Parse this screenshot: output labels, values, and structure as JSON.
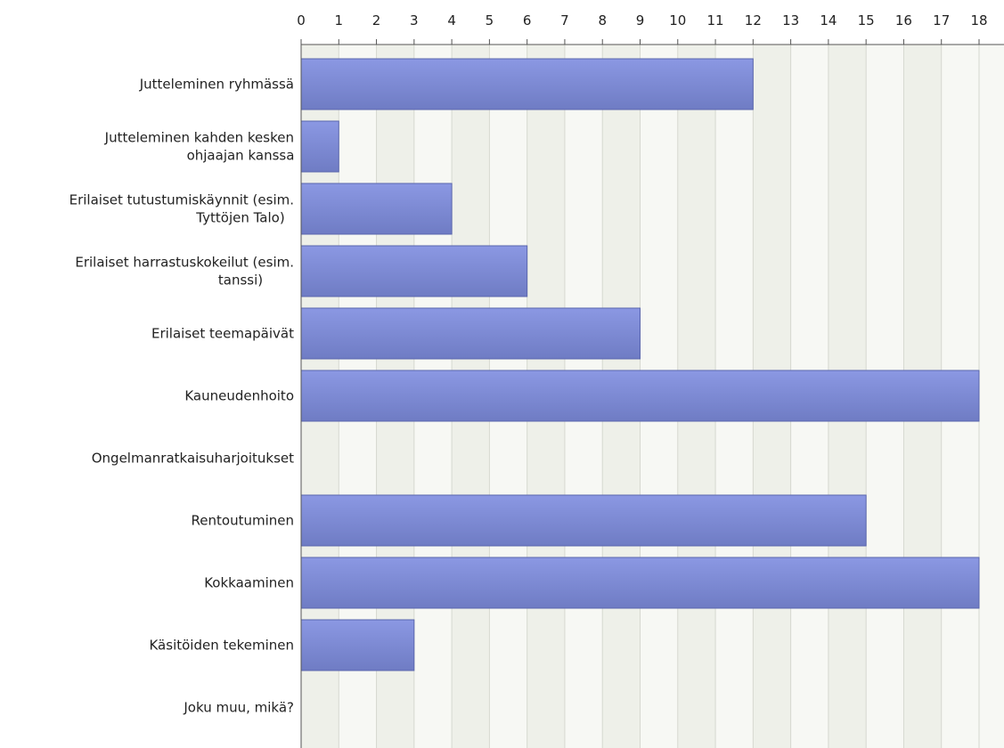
{
  "chart_data": {
    "type": "bar",
    "orientation": "horizontal",
    "title": "",
    "xlabel": "",
    "ylabel": "",
    "xlim": [
      0,
      18
    ],
    "ticks": [
      0,
      1,
      2,
      3,
      4,
      5,
      6,
      7,
      8,
      9,
      10,
      11,
      12,
      13,
      14,
      15,
      16,
      17,
      18
    ],
    "tick_position": "top",
    "grid": true,
    "legend": "none",
    "categories": [
      [
        "Jutteleminen ryhmässä"
      ],
      [
        "Jutteleminen kahden kesken",
        "ohjaajan kanssa"
      ],
      [
        "Erilaiset tutustumiskäynnit (esim.",
        "Tyttöjen Talo)"
      ],
      [
        "Erilaiset harrastuskokeilut (esim.",
        "tanssi)"
      ],
      [
        "Erilaiset teemapäivät"
      ],
      [
        "Kauneudenhoito"
      ],
      [
        "Ongelmanratkaisuharjoitukset"
      ],
      [
        "Rentoutuminen"
      ],
      [
        "Kokkaaminen"
      ],
      [
        "Käsitöiden tekeminen"
      ],
      [
        "Joku muu, mikä?"
      ]
    ],
    "values": [
      12,
      1,
      4,
      6,
      9,
      18,
      0,
      15,
      18,
      3,
      0
    ],
    "colors": {
      "bar_top": "#8b98e3",
      "bar_bottom": "#6f7cc4",
      "bar_edge": "#5a66ad",
      "band_odd": "#eef0e9",
      "band_even": "#f7f8f4",
      "grid": "#d6d8d0",
      "axis": "#555555"
    }
  }
}
